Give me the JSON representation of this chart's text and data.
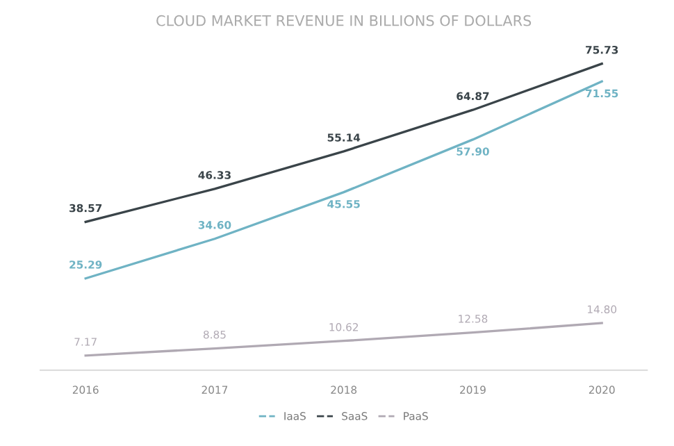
{
  "chart_data": {
    "type": "line",
    "title": "CLOUD MARKET REVENUE IN BILLIONS OF DOLLARS",
    "categories": [
      "2016",
      "2017",
      "2018",
      "2019",
      "2020"
    ],
    "series": [
      {
        "name": "IaaS",
        "color": "#6fb3c4",
        "values": [
          25.29,
          34.6,
          45.55,
          57.9,
          71.55
        ],
        "value_labels": [
          "25.29",
          "34.60",
          "45.55",
          "57.90",
          "71.55"
        ]
      },
      {
        "name": "SaaS",
        "color": "#3a4449",
        "values": [
          38.57,
          46.33,
          55.14,
          64.87,
          75.73
        ],
        "value_labels": [
          "38.57",
          "46.33",
          "55.14",
          "64.87",
          "75.73"
        ]
      },
      {
        "name": "PaaS",
        "color": "#b0a9b3",
        "values": [
          7.17,
          8.85,
          10.62,
          12.58,
          14.8
        ],
        "value_labels": [
          "7.17",
          "8.85",
          "10.62",
          "12.58",
          "14.80"
        ]
      }
    ],
    "tick_labels": "x",
    "grid": false,
    "legend": "bottom",
    "line_style": "solid"
  }
}
